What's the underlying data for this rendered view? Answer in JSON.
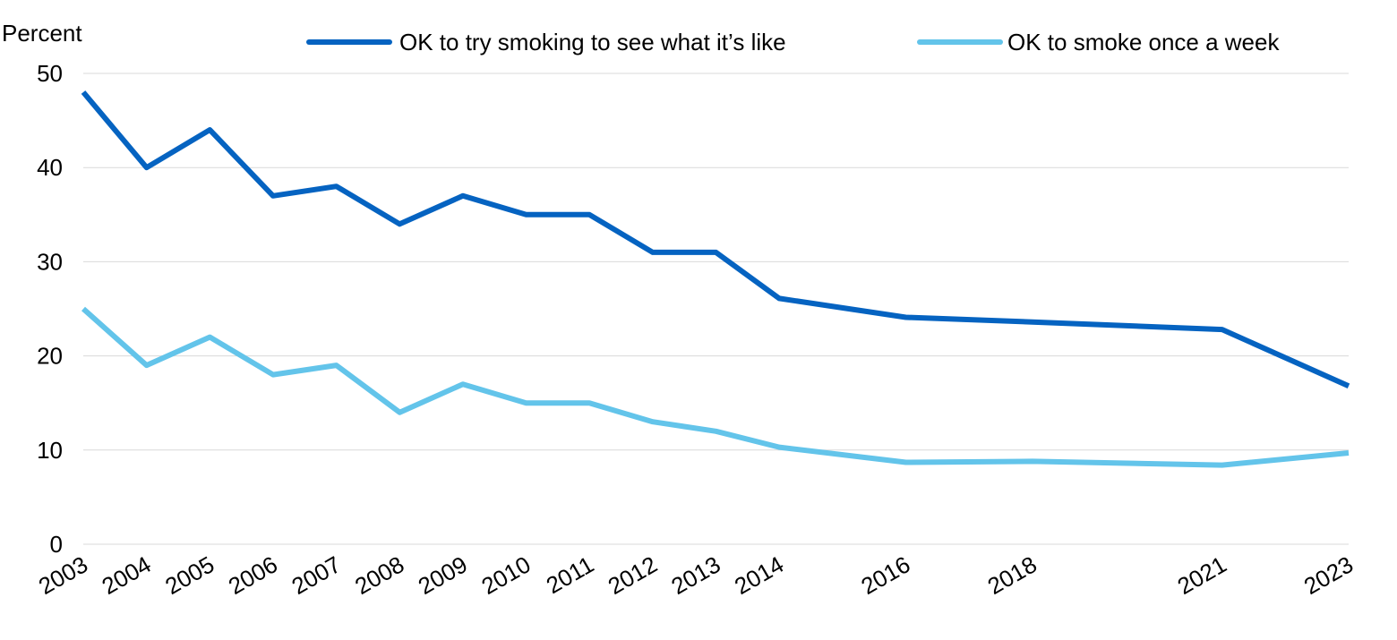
{
  "chart_data": {
    "type": "line",
    "title": "",
    "xlabel": "",
    "ylabel": "Percent",
    "ylim": [
      0,
      50
    ],
    "yticks": [
      0,
      10,
      20,
      30,
      40,
      50
    ],
    "grid": true,
    "legend_position": "top",
    "x": [
      2003,
      2004,
      2005,
      2006,
      2007,
      2008,
      2009,
      2010,
      2011,
      2012,
      2013,
      2014,
      2016,
      2018,
      2021,
      2023
    ],
    "x_tick_labels": [
      "2003",
      "2004",
      "2005",
      "2006",
      "2007",
      "2008",
      "2009",
      "2010",
      "2011",
      "2012",
      "2013",
      "2014",
      "2016",
      "2018",
      "2021",
      "2023"
    ],
    "series": [
      {
        "name": "OK to try smoking to see what it’s like",
        "color": "#0563c1",
        "values": [
          48,
          40,
          44,
          37,
          38,
          34,
          37,
          35,
          35,
          31,
          31,
          26.1,
          24.1,
          23.6,
          22.8,
          16.8
        ]
      },
      {
        "name": "OK to smoke once a week",
        "color": "#63c4ea",
        "values": [
          25,
          19,
          22,
          18,
          19,
          14,
          17,
          15,
          15,
          13,
          12,
          10.3,
          8.7,
          8.8,
          8.4,
          9.7
        ]
      }
    ]
  }
}
